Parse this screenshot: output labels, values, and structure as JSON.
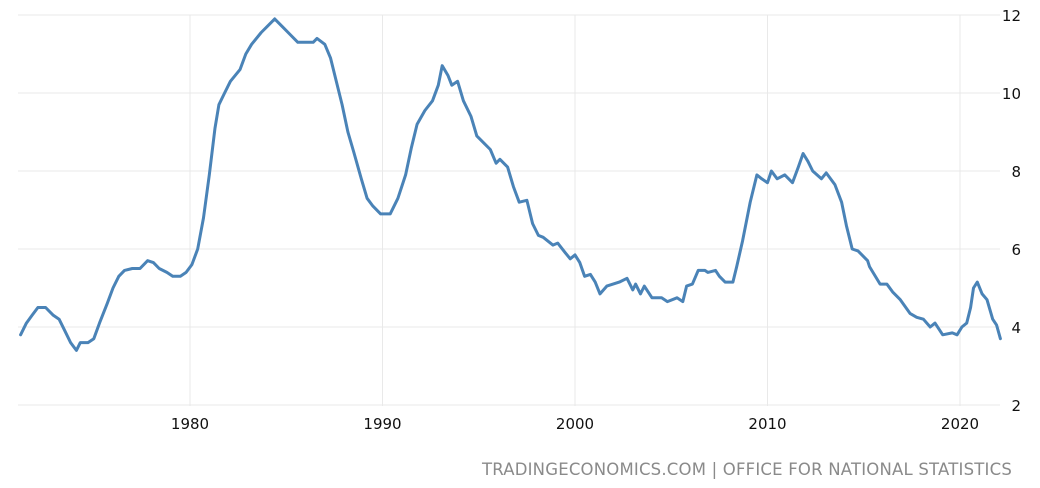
{
  "chart_data": {
    "type": "line",
    "title": "",
    "xlabel": "",
    "ylabel": "",
    "xlim": [
      1971.2,
      2022.1
    ],
    "ylim": [
      2,
      12
    ],
    "x_ticks": [
      1980,
      1990,
      2000,
      2010,
      2020
    ],
    "y_ticks": [
      2,
      4,
      6,
      8,
      10,
      12
    ],
    "y_axis_side": "right",
    "grid": true,
    "line_color": "#4a83b7",
    "series": [
      {
        "points": [
          [
            1971.2,
            3.8
          ],
          [
            1971.5,
            4.1
          ],
          [
            1971.8,
            4.3
          ],
          [
            1972.1,
            4.5
          ],
          [
            1972.5,
            4.5
          ],
          [
            1972.9,
            4.3
          ],
          [
            1973.2,
            4.2
          ],
          [
            1973.5,
            3.9
          ],
          [
            1973.8,
            3.6
          ],
          [
            1974.1,
            3.4
          ],
          [
            1974.3,
            3.6
          ],
          [
            1974.7,
            3.6
          ],
          [
            1975.0,
            3.7
          ],
          [
            1975.3,
            4.1
          ],
          [
            1975.7,
            4.6
          ],
          [
            1976.0,
            5.0
          ],
          [
            1976.3,
            5.3
          ],
          [
            1976.6,
            5.45
          ],
          [
            1977.0,
            5.5
          ],
          [
            1977.4,
            5.5
          ],
          [
            1977.8,
            5.7
          ],
          [
            1978.1,
            5.65
          ],
          [
            1978.4,
            5.5
          ],
          [
            1978.8,
            5.4
          ],
          [
            1979.1,
            5.3
          ],
          [
            1979.5,
            5.3
          ],
          [
            1979.8,
            5.4
          ],
          [
            1980.1,
            5.6
          ],
          [
            1980.4,
            6.0
          ],
          [
            1980.7,
            6.8
          ],
          [
            1981.0,
            7.9
          ],
          [
            1981.3,
            9.1
          ],
          [
            1981.5,
            9.7
          ],
          [
            1981.8,
            10.0
          ],
          [
            1982.1,
            10.3
          ],
          [
            1982.6,
            10.6
          ],
          [
            1982.9,
            11.0
          ],
          [
            1983.2,
            11.25
          ],
          [
            1983.7,
            11.55
          ],
          [
            1984.0,
            11.7
          ],
          [
            1984.4,
            11.9
          ],
          [
            1984.8,
            11.7
          ],
          [
            1985.2,
            11.5
          ],
          [
            1985.6,
            11.3
          ],
          [
            1986.0,
            11.3
          ],
          [
            1986.4,
            11.3
          ],
          [
            1986.6,
            11.4
          ],
          [
            1987.0,
            11.25
          ],
          [
            1987.3,
            10.9
          ],
          [
            1987.6,
            10.3
          ],
          [
            1987.9,
            9.7
          ],
          [
            1988.2,
            9.0
          ],
          [
            1988.5,
            8.5
          ],
          [
            1988.9,
            7.8
          ],
          [
            1989.2,
            7.3
          ],
          [
            1989.5,
            7.1
          ],
          [
            1989.9,
            6.9
          ],
          [
            1990.4,
            6.9
          ],
          [
            1990.8,
            7.3
          ],
          [
            1991.2,
            7.9
          ],
          [
            1991.5,
            8.6
          ],
          [
            1991.8,
            9.2
          ],
          [
            1992.2,
            9.55
          ],
          [
            1992.6,
            9.8
          ],
          [
            1992.9,
            10.2
          ],
          [
            1993.1,
            10.7
          ],
          [
            1993.4,
            10.45
          ],
          [
            1993.6,
            10.2
          ],
          [
            1993.9,
            10.3
          ],
          [
            1994.2,
            9.8
          ],
          [
            1994.6,
            9.4
          ],
          [
            1994.9,
            8.9
          ],
          [
            1995.3,
            8.7
          ],
          [
            1995.6,
            8.55
          ],
          [
            1995.9,
            8.2
          ],
          [
            1996.1,
            8.3
          ],
          [
            1996.5,
            8.1
          ],
          [
            1996.8,
            7.6
          ],
          [
            1997.1,
            7.2
          ],
          [
            1997.5,
            7.25
          ],
          [
            1997.8,
            6.65
          ],
          [
            1998.1,
            6.35
          ],
          [
            1998.35,
            6.3
          ],
          [
            1998.85,
            6.1
          ],
          [
            1999.1,
            6.15
          ],
          [
            1999.5,
            5.9
          ],
          [
            1999.75,
            5.75
          ],
          [
            2000.0,
            5.85
          ],
          [
            2000.25,
            5.65
          ],
          [
            2000.5,
            5.3
          ],
          [
            2000.8,
            5.35
          ],
          [
            2001.05,
            5.15
          ],
          [
            2001.3,
            4.85
          ],
          [
            2001.65,
            5.05
          ],
          [
            2002.3,
            5.15
          ],
          [
            2002.7,
            5.25
          ],
          [
            2003.0,
            4.95
          ],
          [
            2003.15,
            5.1
          ],
          [
            2003.4,
            4.85
          ],
          [
            2003.6,
            5.05
          ],
          [
            2004.0,
            4.75
          ],
          [
            2004.5,
            4.75
          ],
          [
            2004.8,
            4.65
          ],
          [
            2005.3,
            4.75
          ],
          [
            2005.6,
            4.65
          ],
          [
            2005.8,
            5.05
          ],
          [
            2006.1,
            5.1
          ],
          [
            2006.4,
            5.45
          ],
          [
            2006.75,
            5.45
          ],
          [
            2006.9,
            5.4
          ],
          [
            2007.3,
            5.45
          ],
          [
            2007.5,
            5.3
          ],
          [
            2007.8,
            5.15
          ],
          [
            2008.2,
            5.15
          ],
          [
            2008.4,
            5.55
          ],
          [
            2008.7,
            6.2
          ],
          [
            2009.1,
            7.2
          ],
          [
            2009.45,
            7.9
          ],
          [
            2009.7,
            7.8
          ],
          [
            2010.0,
            7.7
          ],
          [
            2010.2,
            8.0
          ],
          [
            2010.5,
            7.8
          ],
          [
            2010.9,
            7.9
          ],
          [
            2011.3,
            7.7
          ],
          [
            2011.6,
            8.1
          ],
          [
            2011.85,
            8.45
          ],
          [
            2012.1,
            8.25
          ],
          [
            2012.35,
            8.0
          ],
          [
            2012.8,
            7.8
          ],
          [
            2013.05,
            7.95
          ],
          [
            2013.5,
            7.65
          ],
          [
            2013.85,
            7.2
          ],
          [
            2014.1,
            6.6
          ],
          [
            2014.4,
            6.0
          ],
          [
            2014.7,
            5.95
          ],
          [
            2015.2,
            5.7
          ],
          [
            2015.3,
            5.55
          ],
          [
            2015.85,
            5.1
          ],
          [
            2016.2,
            5.1
          ],
          [
            2016.5,
            4.9
          ],
          [
            2016.9,
            4.7
          ],
          [
            2017.4,
            4.35
          ],
          [
            2017.75,
            4.25
          ],
          [
            2018.1,
            4.2
          ],
          [
            2018.45,
            4.0
          ],
          [
            2018.7,
            4.1
          ],
          [
            2019.1,
            3.8
          ],
          [
            2019.6,
            3.85
          ],
          [
            2019.85,
            3.8
          ],
          [
            2020.1,
            4.0
          ],
          [
            2020.35,
            4.1
          ],
          [
            2020.55,
            4.5
          ],
          [
            2020.7,
            5.0
          ],
          [
            2020.9,
            5.15
          ],
          [
            2021.15,
            4.85
          ],
          [
            2021.4,
            4.7
          ],
          [
            2021.7,
            4.2
          ],
          [
            2021.9,
            4.05
          ],
          [
            2022.1,
            3.7
          ]
        ]
      }
    ],
    "source": "TRADINGECONOMICS.COM | OFFICE FOR NATIONAL STATISTICS"
  }
}
